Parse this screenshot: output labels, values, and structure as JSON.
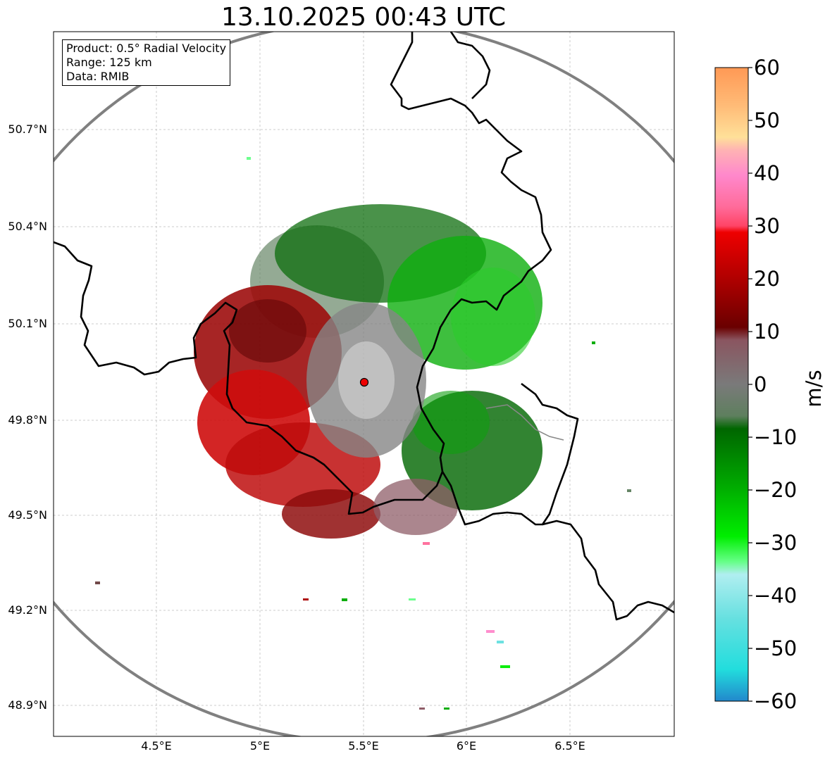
{
  "title": "13.10.2025 00:43 UTC",
  "info_box": {
    "product": "Product: 0.5° Radial Velocity",
    "range": "Range: 125 km",
    "source": "Data: RMIB"
  },
  "axes": {
    "lat_labels": [
      "50.7°N",
      "50.4°N",
      "50.1°N",
      "49.8°N",
      "49.5°N",
      "49.2°N",
      "48.9°N"
    ],
    "lon_labels": [
      "4.5°E",
      "5°E",
      "5.5°E",
      "6°E",
      "6.5°E"
    ]
  },
  "colorbar": {
    "label": "m/s",
    "range": [
      -60,
      60
    ],
    "ticks": [
      "60",
      "50",
      "40",
      "30",
      "20",
      "10",
      "0",
      "−10",
      "−20",
      "−30",
      "−40",
      "−50",
      "−60"
    ],
    "colors": [
      "#ff9955",
      "#ffbb77",
      "#ffe099",
      "#ffb3b3",
      "#ff88cc",
      "#ff6b9a",
      "#ff4466",
      "#ee0000",
      "#aa0000",
      "#6a0000",
      "#8a5560",
      "#7a7a7a",
      "#5e7f5e",
      "#006600",
      "#00aa00",
      "#00ee00",
      "#66ff88",
      "#b0eef0",
      "#66e0e0",
      "#22dddd",
      "#2288cc"
    ]
  },
  "radar": {
    "site_lon": 5.5,
    "site_lat": 49.91,
    "range_km": 125
  },
  "colors": {
    "range_ring": "#808080",
    "border": "#000000",
    "grid": "#bfbfbf",
    "site_marker": "#ee0000"
  }
}
